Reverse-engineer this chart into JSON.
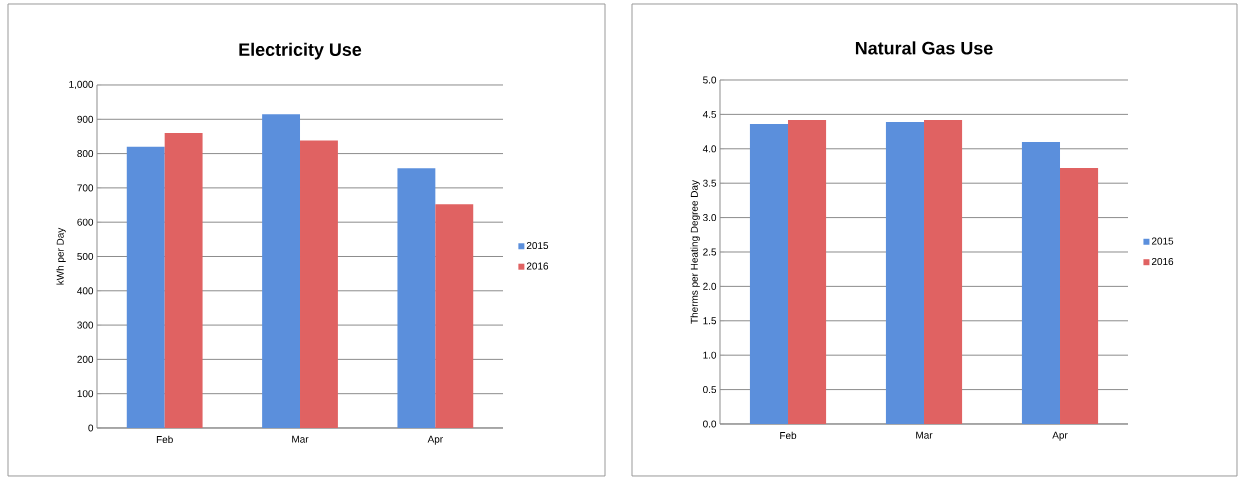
{
  "chart_data": [
    {
      "type": "bar",
      "title": "Electricity Use",
      "ylabel": "kWh per Day",
      "categories": [
        "Feb",
        "Mar",
        "Apr"
      ],
      "series": [
        {
          "name": "2015",
          "color": "#5b8fdc",
          "values": [
            820,
            915,
            757
          ]
        },
        {
          "name": "2016",
          "color": "#e06262",
          "values": [
            860,
            838,
            652
          ]
        }
      ],
      "ylim": [
        0,
        1000
      ],
      "yticks": [
        0,
        100,
        200,
        300,
        400,
        500,
        600,
        700,
        800,
        900,
        {
          "value": 1000,
          "label": "1,000"
        }
      ],
      "grid": "y",
      "legend": "right"
    },
    {
      "type": "bar",
      "title": "Natural Gas Use",
      "ylabel": "Therms per Heating Degree Day",
      "categories": [
        "Feb",
        "Mar",
        "Apr"
      ],
      "series": [
        {
          "name": "2015",
          "color": "#5b8fdc",
          "values": [
            4.36,
            4.39,
            4.1
          ]
        },
        {
          "name": "2016",
          "color": "#e06262",
          "values": [
            4.42,
            4.42,
            3.72
          ]
        }
      ],
      "ylim": [
        0,
        5
      ],
      "yticks": [
        {
          "value": 0,
          "label": "0.0"
        },
        {
          "value": 0.5,
          "label": "0.5"
        },
        {
          "value": 1,
          "label": "1.0"
        },
        {
          "value": 1.5,
          "label": "1.5"
        },
        {
          "value": 2,
          "label": "2.0"
        },
        {
          "value": 2.5,
          "label": "2.5"
        },
        {
          "value": 3,
          "label": "3.0"
        },
        {
          "value": 3.5,
          "label": "3.5"
        },
        {
          "value": 4,
          "label": "4.0"
        },
        {
          "value": 4.5,
          "label": "4.5"
        },
        {
          "value": 5,
          "label": "5.0"
        }
      ],
      "grid": "y",
      "legend": "right"
    }
  ]
}
